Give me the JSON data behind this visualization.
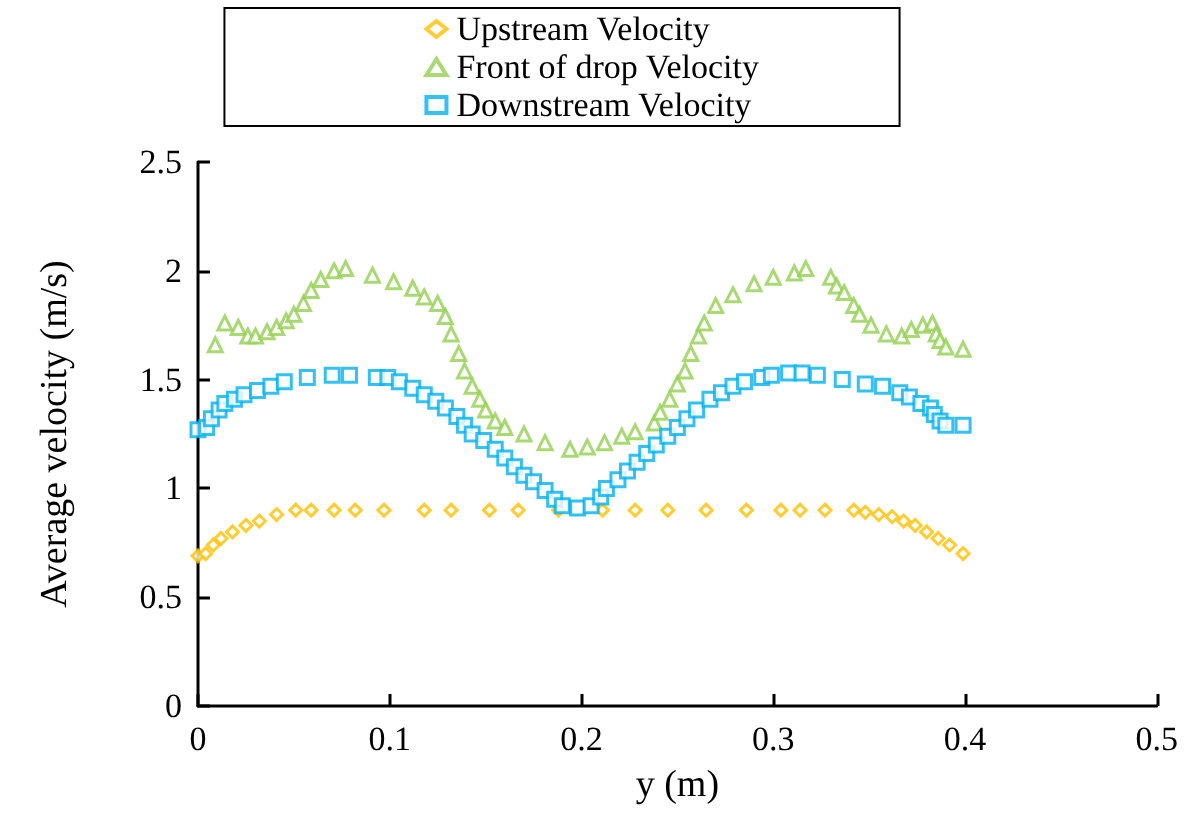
{
  "chart_data": {
    "type": "scatter",
    "xlabel": "y (m)",
    "ylabel": "Average velocity (m/s)",
    "xlim": [
      0,
      0.5
    ],
    "xticks": [
      0,
      0.1,
      0.2,
      0.3,
      0.4,
      0.5
    ],
    "ylim": [
      0,
      2.5
    ],
    "yticks": [
      0,
      0.5,
      1,
      1.5,
      2,
      2.5
    ],
    "grid": false,
    "legend": "top",
    "series": [
      {
        "name": "Upstream Velocity",
        "color": "#ffc000",
        "marker": "diamond",
        "x": [
          0.0,
          0.004,
          0.008,
          0.012,
          0.018,
          0.025,
          0.032,
          0.041,
          0.051,
          0.059,
          0.071,
          0.082,
          0.097,
          0.118,
          0.132,
          0.152,
          0.167,
          0.188,
          0.211,
          0.228,
          0.245,
          0.265,
          0.286,
          0.304,
          0.314,
          0.327,
          0.342,
          0.348,
          0.355,
          0.362,
          0.368,
          0.374,
          0.38,
          0.386,
          0.392,
          0.399
        ],
        "values": [
          0.69,
          0.7,
          0.74,
          0.77,
          0.8,
          0.83,
          0.85,
          0.88,
          0.9,
          0.9,
          0.9,
          0.9,
          0.9,
          0.9,
          0.9,
          0.9,
          0.9,
          0.9,
          0.9,
          0.9,
          0.9,
          0.9,
          0.9,
          0.9,
          0.9,
          0.9,
          0.9,
          0.89,
          0.88,
          0.87,
          0.85,
          0.83,
          0.8,
          0.77,
          0.74,
          0.7
        ]
      },
      {
        "name": "Front of drop Velocity",
        "color": "#92d050",
        "marker": "triangle",
        "x": [
          0.009,
          0.014,
          0.021,
          0.026,
          0.03,
          0.036,
          0.041,
          0.046,
          0.05,
          0.055,
          0.059,
          0.064,
          0.071,
          0.077,
          0.091,
          0.102,
          0.112,
          0.118,
          0.125,
          0.129,
          0.132,
          0.136,
          0.139,
          0.143,
          0.147,
          0.15,
          0.155,
          0.16,
          0.17,
          0.181,
          0.194,
          0.203,
          0.212,
          0.221,
          0.228,
          0.238,
          0.241,
          0.246,
          0.25,
          0.254,
          0.257,
          0.261,
          0.264,
          0.27,
          0.279,
          0.29,
          0.3,
          0.311,
          0.317,
          0.33,
          0.333,
          0.337,
          0.342,
          0.345,
          0.351,
          0.359,
          0.367,
          0.372,
          0.378,
          0.383,
          0.385,
          0.387,
          0.39,
          0.399
        ],
        "values": [
          1.66,
          1.76,
          1.74,
          1.7,
          1.7,
          1.72,
          1.74,
          1.77,
          1.8,
          1.85,
          1.91,
          1.96,
          2.0,
          2.01,
          1.98,
          1.95,
          1.92,
          1.88,
          1.85,
          1.79,
          1.71,
          1.62,
          1.54,
          1.47,
          1.41,
          1.36,
          1.31,
          1.28,
          1.25,
          1.21,
          1.18,
          1.19,
          1.21,
          1.24,
          1.26,
          1.3,
          1.35,
          1.41,
          1.48,
          1.54,
          1.62,
          1.7,
          1.76,
          1.84,
          1.89,
          1.94,
          1.97,
          1.99,
          2.01,
          1.97,
          1.93,
          1.9,
          1.84,
          1.8,
          1.75,
          1.71,
          1.7,
          1.73,
          1.75,
          1.76,
          1.71,
          1.68,
          1.65,
          1.64
        ]
      },
      {
        "name": "Downstream Velocity",
        "color": "#00b0f0",
        "marker": "square",
        "x": [
          0.0,
          0.0045,
          0.007,
          0.011,
          0.014,
          0.019,
          0.024,
          0.031,
          0.038,
          0.045,
          0.057,
          0.07,
          0.079,
          0.093,
          0.099,
          0.105,
          0.112,
          0.118,
          0.124,
          0.129,
          0.135,
          0.139,
          0.143,
          0.149,
          0.155,
          0.16,
          0.165,
          0.17,
          0.175,
          0.181,
          0.186,
          0.19,
          0.198,
          0.205,
          0.21,
          0.213,
          0.219,
          0.224,
          0.229,
          0.234,
          0.239,
          0.245,
          0.25,
          0.255,
          0.26,
          0.267,
          0.273,
          0.279,
          0.285,
          0.294,
          0.299,
          0.308,
          0.315,
          0.323,
          0.336,
          0.348,
          0.357,
          0.366,
          0.371,
          0.377,
          0.382,
          0.384,
          0.387,
          0.39,
          0.399
        ],
        "values": [
          1.27,
          1.28,
          1.32,
          1.36,
          1.39,
          1.41,
          1.43,
          1.45,
          1.47,
          1.49,
          1.51,
          1.52,
          1.52,
          1.51,
          1.51,
          1.49,
          1.46,
          1.43,
          1.4,
          1.37,
          1.33,
          1.29,
          1.25,
          1.22,
          1.18,
          1.14,
          1.1,
          1.06,
          1.03,
          0.99,
          0.95,
          0.92,
          0.91,
          0.92,
          0.96,
          1.0,
          1.04,
          1.08,
          1.12,
          1.16,
          1.2,
          1.24,
          1.28,
          1.32,
          1.36,
          1.41,
          1.44,
          1.47,
          1.49,
          1.51,
          1.52,
          1.53,
          1.53,
          1.52,
          1.5,
          1.48,
          1.47,
          1.44,
          1.42,
          1.39,
          1.37,
          1.34,
          1.31,
          1.29,
          1.29
        ]
      }
    ]
  }
}
